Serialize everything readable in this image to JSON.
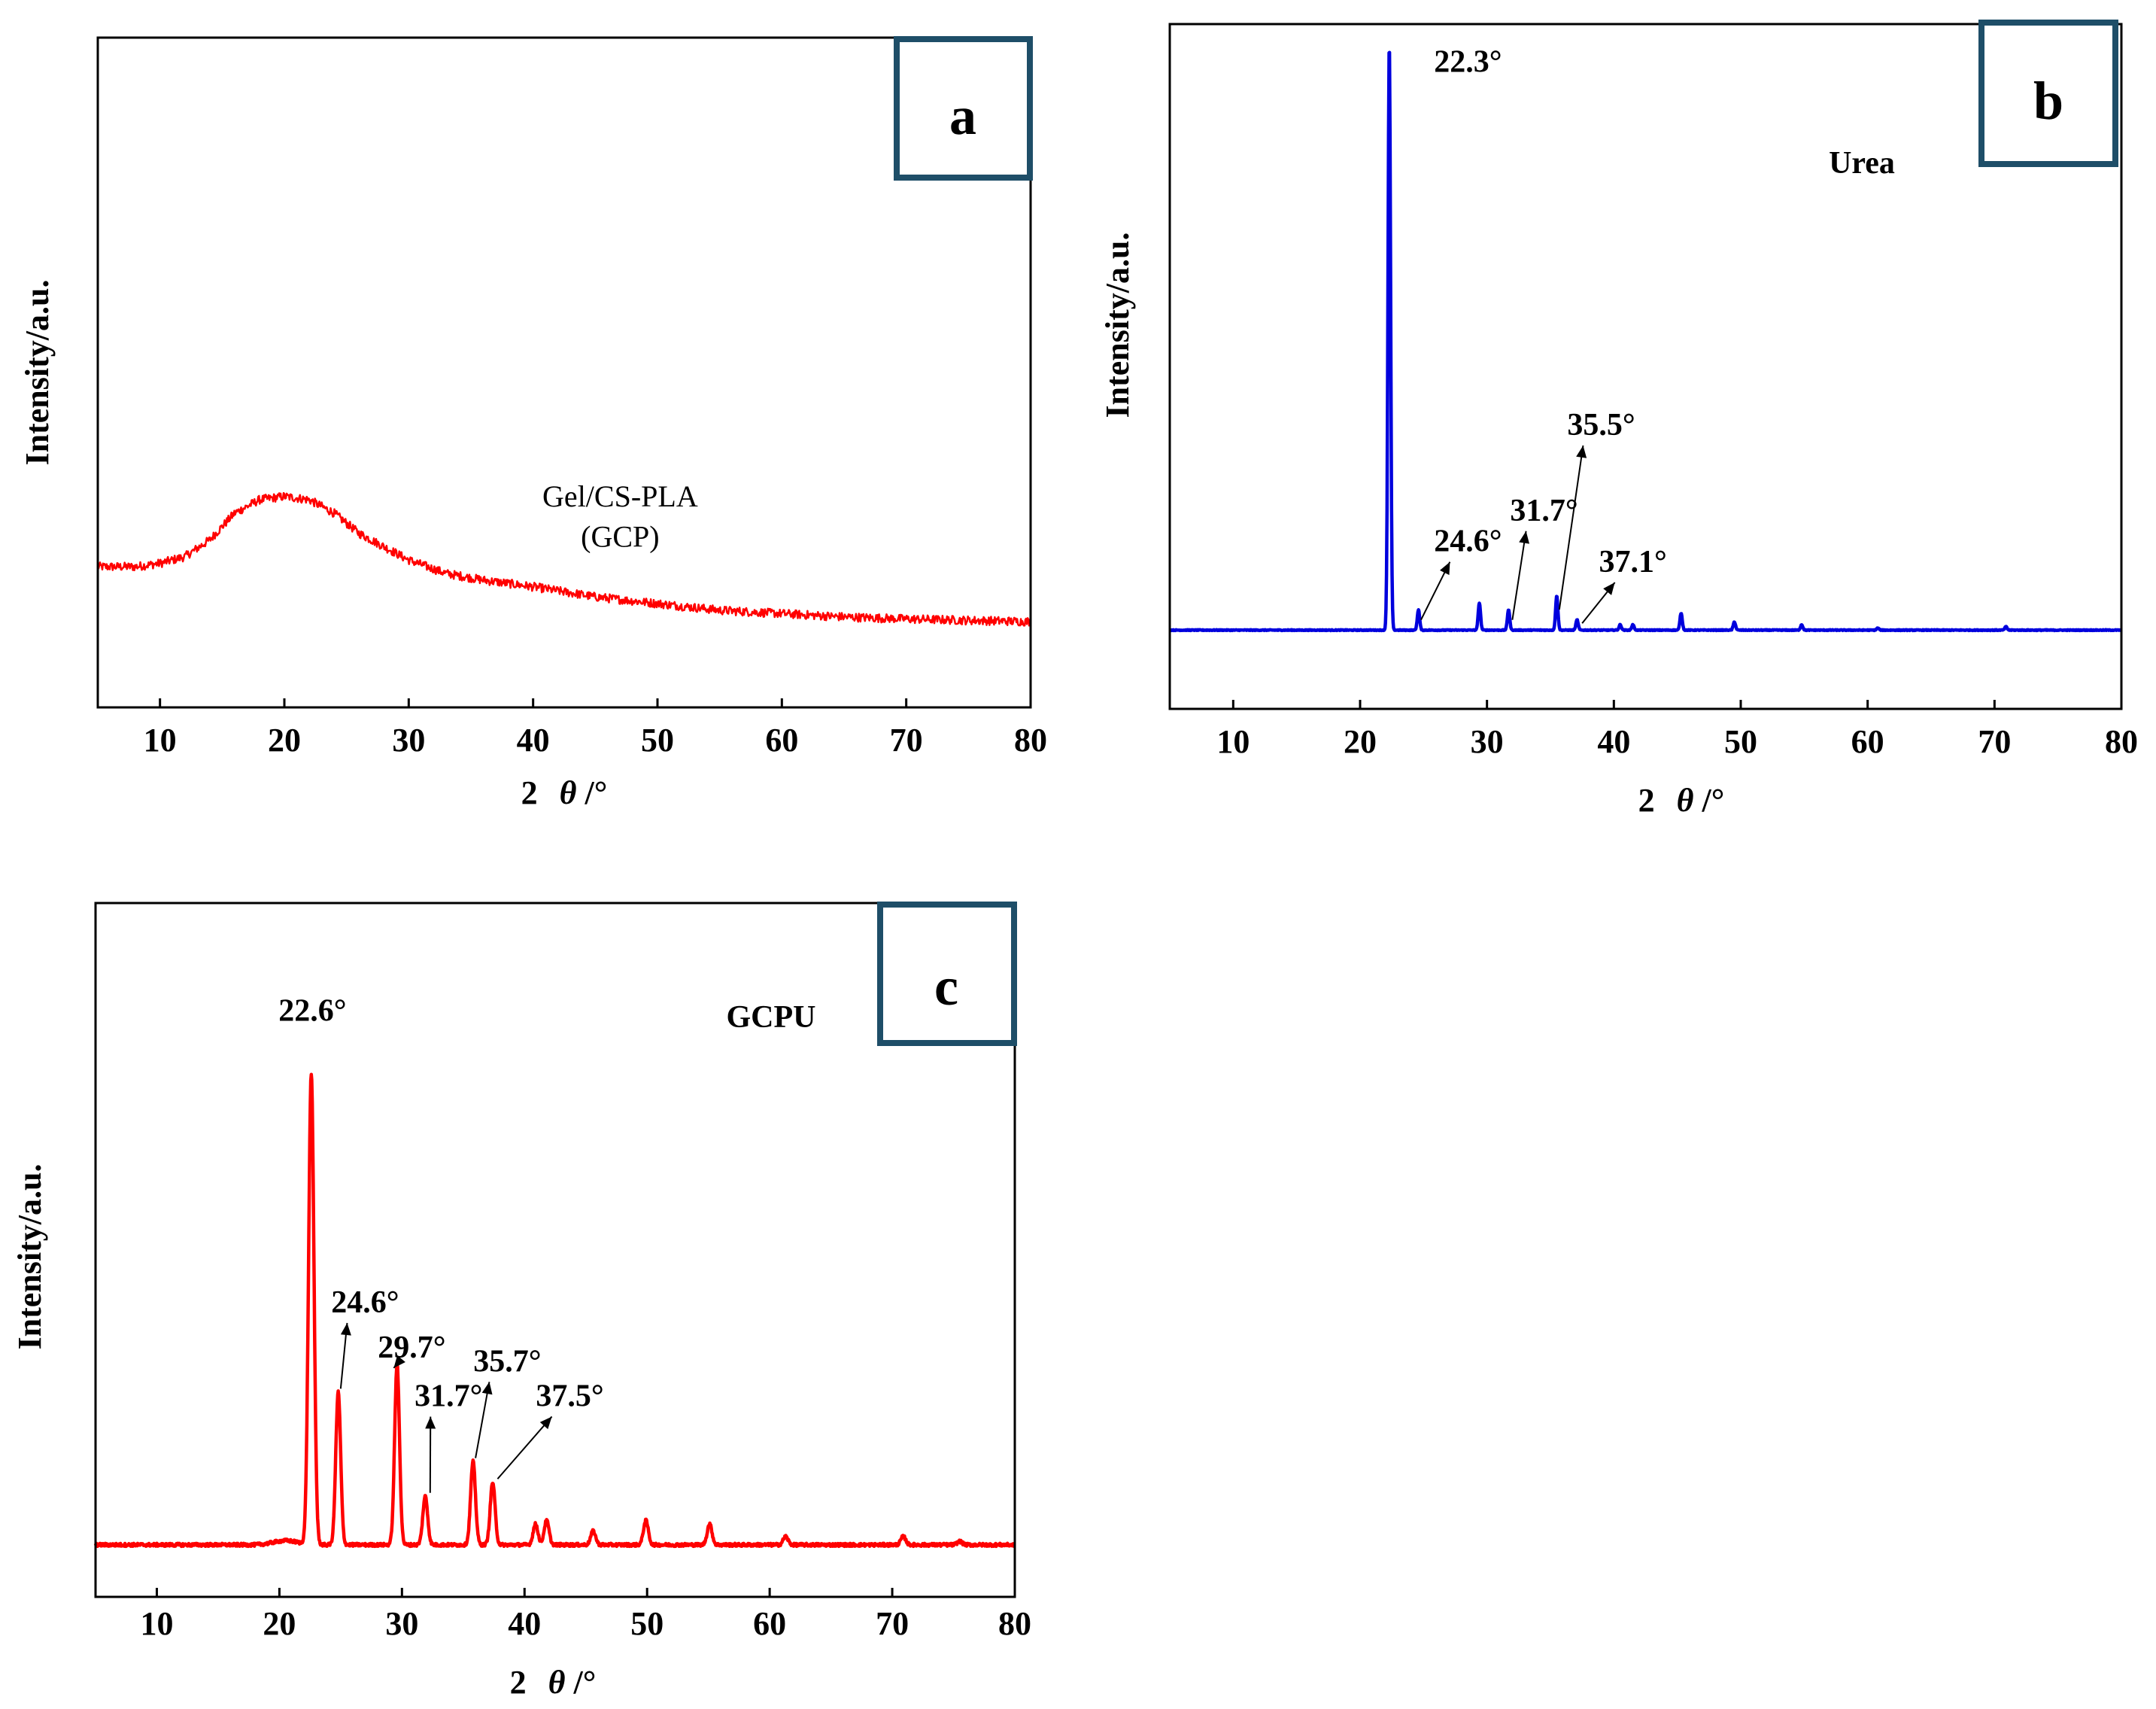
{
  "chart_data": [
    {
      "id": "a",
      "type": "line",
      "panel_label": "a",
      "xlabel_prefix": "2",
      "xlabel_theta": "θ",
      "xlabel_suffix": "/°",
      "ylabel": "Intensity/a.u.",
      "xlim": [
        5,
        80
      ],
      "ylim": [
        0,
        100
      ],
      "xticks": [
        "10",
        "20",
        "30",
        "40",
        "50",
        "60",
        "70",
        "80"
      ],
      "series": [
        {
          "name": "Gel/CS-PLA (GCP)",
          "color": "#ff0000",
          "points": [
            [
              5,
              21
            ],
            [
              8,
              21
            ],
            [
              10,
              21.5
            ],
            [
              12,
              22.5
            ],
            [
              14,
              25
            ],
            [
              16,
              29
            ],
            [
              18,
              31
            ],
            [
              20,
              31.5
            ],
            [
              22,
              31
            ],
            [
              24,
              29
            ],
            [
              26,
              26
            ],
            [
              28,
              24
            ],
            [
              30,
              22
            ],
            [
              33,
              20
            ],
            [
              36,
              19
            ],
            [
              40,
              18
            ],
            [
              45,
              16.5
            ],
            [
              50,
              15.5
            ],
            [
              55,
              14.5
            ],
            [
              60,
              14
            ],
            [
              65,
              13.5
            ],
            [
              70,
              13.2
            ],
            [
              75,
              13
            ],
            [
              80,
              12.8
            ]
          ]
        }
      ],
      "annotations": [
        {
          "text": "Gel/CS-PLA",
          "x": 47,
          "y": 30
        },
        {
          "text": "(GCP)",
          "x": 47,
          "y": 24
        }
      ]
    },
    {
      "id": "b",
      "type": "line",
      "panel_label": "b",
      "xlabel_prefix": "2",
      "xlabel_theta": "θ",
      "xlabel_suffix": "/°",
      "ylabel": "Intensity/a.u.",
      "xlim": [
        5,
        80
      ],
      "ylim": [
        0,
        100
      ],
      "xticks": [
        "10",
        "20",
        "30",
        "40",
        "50",
        "60",
        "70",
        "80"
      ],
      "series": [
        {
          "name": "Urea",
          "color": "#0000dd",
          "baseline": 11.5,
          "peaks": [
            [
              22.3,
              86
            ],
            [
              24.6,
              3
            ],
            [
              29.4,
              4
            ],
            [
              31.7,
              3
            ],
            [
              35.5,
              5
            ],
            [
              37.1,
              1.5
            ],
            [
              40.5,
              0.8
            ],
            [
              41.5,
              0.8
            ],
            [
              45.3,
              2.5
            ],
            [
              49.5,
              1.2
            ],
            [
              54.8,
              0.8
            ],
            [
              60.8,
              0.3
            ],
            [
              70.9,
              0.5
            ]
          ]
        }
      ],
      "legend_text": "Urea",
      "annotations": [
        {
          "text": "22.3°",
          "x": 28.5,
          "y": 93
        },
        {
          "text": "24.6°",
          "x": 28.5,
          "y": 23,
          "arrow_to": [
            24.8,
            13
          ]
        },
        {
          "text": "31.7°",
          "x": 34.5,
          "y": 27.5,
          "arrow_to": [
            32.0,
            13
          ]
        },
        {
          "text": "35.5°",
          "x": 39,
          "y": 40,
          "arrow_to": [
            35.7,
            14.5
          ]
        },
        {
          "text": "37.1°",
          "x": 41.5,
          "y": 20,
          "arrow_to": [
            37.5,
            12.5
          ]
        }
      ]
    },
    {
      "id": "c",
      "type": "line",
      "panel_label": "c",
      "xlabel_prefix": "2",
      "xlabel_theta": "θ",
      "xlabel_suffix": "/°",
      "ylabel": "Intensity/a.u.",
      "xlim": [
        5,
        80
      ],
      "ylim": [
        0,
        100
      ],
      "xticks": [
        "10",
        "20",
        "30",
        "40",
        "50",
        "60",
        "70",
        "80"
      ],
      "series": [
        {
          "name": "GCPU",
          "color": "#ff0000",
          "baseline": 7.5,
          "peaks": [
            [
              22.6,
              68
            ],
            [
              24.8,
              22
            ],
            [
              29.6,
              26
            ],
            [
              31.9,
              7
            ],
            [
              35.8,
              12
            ],
            [
              37.4,
              9
            ],
            [
              40.9,
              3
            ],
            [
              41.8,
              3.5
            ],
            [
              45.6,
              2
            ],
            [
              49.9,
              3.5
            ],
            [
              55.1,
              3
            ],
            [
              61.3,
              1.2
            ],
            [
              70.9,
              1.2
            ],
            [
              75.5,
              0.5
            ]
          ]
        }
      ],
      "legend_text": "GCPU",
      "annotations": [
        {
          "text": "22.6°",
          "x": 22.7,
          "y": 83
        },
        {
          "text": "24.6°",
          "x": 27,
          "y": 41,
          "arrow_to": [
            25.0,
            30
          ]
        },
        {
          "text": "29.7°",
          "x": 30.8,
          "y": 34.5,
          "arrow_to": [
            29.8,
            34
          ]
        },
        {
          "text": "31.7°",
          "x": 33.8,
          "y": 27.5,
          "arrow_to": [
            32.3,
            15
          ]
        },
        {
          "text": "35.7°",
          "x": 38.6,
          "y": 32.5,
          "arrow_to": [
            36.0,
            20
          ]
        },
        {
          "text": "37.5°",
          "x": 43.7,
          "y": 27.5,
          "arrow_to": [
            37.8,
            17
          ]
        }
      ]
    }
  ]
}
